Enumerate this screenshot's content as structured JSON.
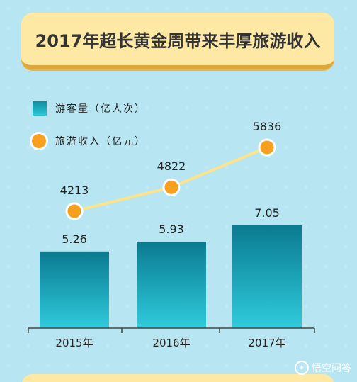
{
  "title": "2017年超长黄金周带来丰厚旅游收入",
  "legend": {
    "bar_label": "游客量（亿人次）",
    "line_label": "旅游收入（亿元）"
  },
  "watermark": {
    "text": "悟空问答",
    "icon": "wukong-icon"
  },
  "colors": {
    "bar_top": "#0a7a90",
    "bar_bottom": "#2fcbdc",
    "line": "#fde38a",
    "dot": "#f7a01f",
    "title_bg": "#fde9a4"
  },
  "chart_data": {
    "type": "bar",
    "categories": [
      "2015年",
      "2016年",
      "2017年"
    ],
    "series": [
      {
        "name": "游客量（亿人次）",
        "type": "bar",
        "values": [
          5.26,
          5.93,
          7.05
        ],
        "labels": [
          "5.26",
          "5.93",
          "7.05"
        ]
      },
      {
        "name": "旅游收入（亿元）",
        "type": "line",
        "values": [
          4213,
          4822,
          5836
        ],
        "labels": [
          "4213",
          "4822",
          "5836"
        ]
      }
    ],
    "title": "2017年超长黄金周带来丰厚旅游收入",
    "legend_position": "top-left",
    "grid": false
  }
}
